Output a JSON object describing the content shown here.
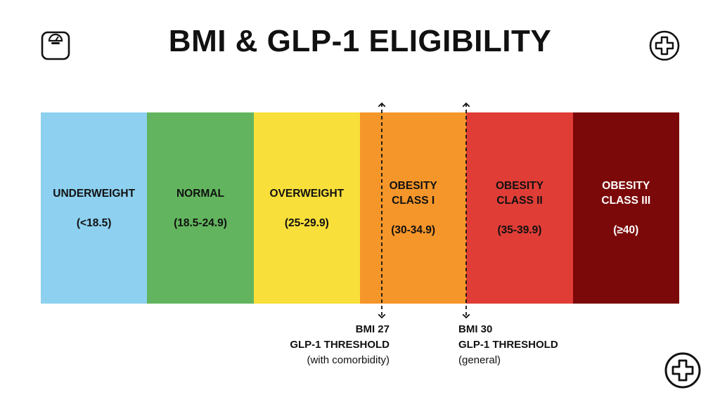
{
  "title": "BMI & GLP-1 ELIGIBILITY",
  "icons": {
    "left": "bathroom-scale-icon",
    "right_top": "medical-cross-icon",
    "right_bottom": "medical-cross-icon"
  },
  "categories": [
    {
      "name": "UNDERWEIGHT",
      "range": "(<18.5)",
      "color": "#8dd0ef",
      "text_color": "#111111"
    },
    {
      "name": "NORMAL",
      "range": "(18.5-24.9)",
      "color": "#62b55e",
      "text_color": "#111111"
    },
    {
      "name": "OVERWEIGHT",
      "range": "(25-29.9)",
      "color": "#f8df3a",
      "text_color": "#111111"
    },
    {
      "name": "OBESITY\nCLASS I",
      "range": "(30-34.9)",
      "color": "#f5962a",
      "text_color": "#111111"
    },
    {
      "name": "OBESITY\nCLASS II",
      "range": "(35-39.9)",
      "color": "#e03d36",
      "text_color": "#111111"
    },
    {
      "name": "OBESITY\nCLASS III",
      "range": "(≥40)",
      "color": "#7b0909",
      "text_color": "#ffffff"
    }
  ],
  "thresholds": [
    {
      "line1": "BMI 27",
      "line2": "GLP-1 THRESHOLD",
      "line3": "(with comorbidity)"
    },
    {
      "line1": "BMI 30",
      "line2": "GLP-1 THRESHOLD",
      "line3": "(general)"
    }
  ]
}
